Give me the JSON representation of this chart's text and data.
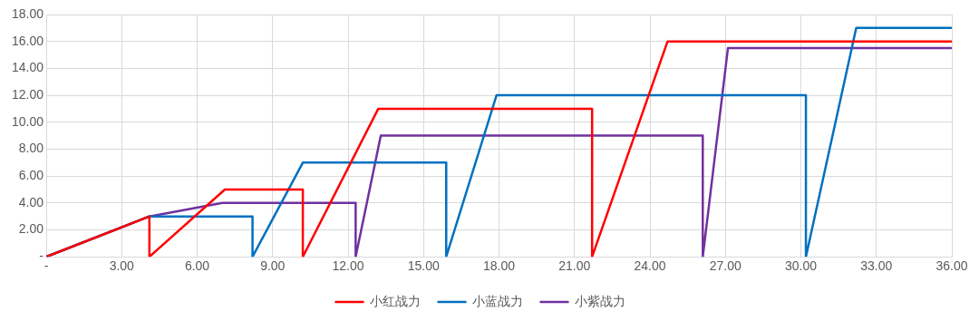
{
  "chart_data": {
    "type": "line",
    "xlim": [
      0,
      36
    ],
    "ylim": [
      0,
      18
    ],
    "xticks": [
      {
        "value": 0,
        "label": "-"
      },
      {
        "value": 3,
        "label": "3.00"
      },
      {
        "value": 6,
        "label": "6.00"
      },
      {
        "value": 9,
        "label": "9.00"
      },
      {
        "value": 12,
        "label": "12.00"
      },
      {
        "value": 15,
        "label": "15.00"
      },
      {
        "value": 18,
        "label": "18.00"
      },
      {
        "value": 21,
        "label": "21.00"
      },
      {
        "value": 24,
        "label": "24.00"
      },
      {
        "value": 27,
        "label": "27.00"
      },
      {
        "value": 30,
        "label": "30.00"
      },
      {
        "value": 33,
        "label": "33.00"
      },
      {
        "value": 36,
        "label": "36.00"
      }
    ],
    "yticks": [
      {
        "value": 0,
        "label": "-"
      },
      {
        "value": 2,
        "label": "2.00"
      },
      {
        "value": 4,
        "label": "4.00"
      },
      {
        "value": 6,
        "label": "6.00"
      },
      {
        "value": 8,
        "label": "8.00"
      },
      {
        "value": 10,
        "label": "10.00"
      },
      {
        "value": 12,
        "label": "12.00"
      },
      {
        "value": 14,
        "label": "14.00"
      },
      {
        "value": 16,
        "label": "16.00"
      },
      {
        "value": 18,
        "label": "18.00"
      }
    ],
    "grid": true,
    "legend": "bottom",
    "marker": "none",
    "line_style": "solid",
    "series": [
      {
        "name": "小红战力",
        "color": "#ff0000",
        "x": [
          0,
          4.1,
          4.1,
          7.1,
          10.2,
          10.2,
          13.2,
          21.7,
          21.7,
          24.7,
          36
        ],
        "values": [
          0,
          3,
          0,
          5,
          5,
          0,
          11,
          11,
          0,
          16,
          16
        ]
      },
      {
        "name": "小蓝战力",
        "color": "#0070c0",
        "x": [
          0,
          4.1,
          8.2,
          8.2,
          10.2,
          15.9,
          15.9,
          17.9,
          30.2,
          30.2,
          32.2,
          36
        ],
        "values": [
          0,
          3,
          3,
          0,
          7,
          7,
          0,
          12,
          12,
          0,
          17,
          17
        ]
      },
      {
        "name": "小紫战力",
        "color": "#7030a0",
        "x": [
          0,
          4.1,
          7.0,
          12.3,
          12.3,
          13.3,
          26.1,
          26.1,
          27.1,
          36
        ],
        "values": [
          0,
          3,
          4,
          4,
          0,
          9,
          9,
          0,
          15.5,
          15.5
        ]
      }
    ]
  }
}
